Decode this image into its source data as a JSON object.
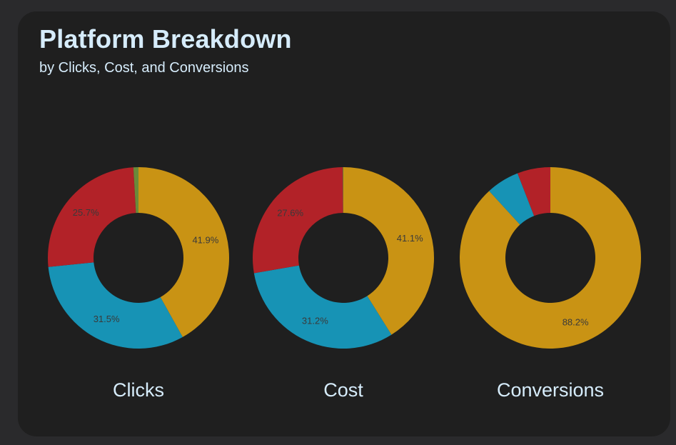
{
  "header": {
    "title": "Platform Breakdown",
    "subtitle": "by Clicks, Cost, and Conversions"
  },
  "chart_data": [
    {
      "type": "pie",
      "title": "Clicks",
      "donut": true,
      "slices": [
        {
          "value": 41.9,
          "label": "41.9%",
          "color": "#c99314"
        },
        {
          "value": 31.5,
          "label": "31.5%",
          "color": "#1793b5"
        },
        {
          "value": 25.7,
          "label": "25.7%",
          "color": "#b22228"
        },
        {
          "value": 0.9,
          "label": "",
          "color": "#6a8a3a"
        }
      ]
    },
    {
      "type": "pie",
      "title": "Cost",
      "donut": true,
      "slices": [
        {
          "value": 41.1,
          "label": "41.1%",
          "color": "#c99314"
        },
        {
          "value": 31.2,
          "label": "31.2%",
          "color": "#1793b5"
        },
        {
          "value": 27.6,
          "label": "27.6%",
          "color": "#b22228"
        },
        {
          "value": 0.1,
          "label": "",
          "color": "#6a8a3a"
        }
      ]
    },
    {
      "type": "pie",
      "title": "Conversions",
      "donut": true,
      "slices": [
        {
          "value": 88.2,
          "label": "88.2%",
          "color": "#c99314"
        },
        {
          "value": 5.9,
          "label": "",
          "color": "#1793b5"
        },
        {
          "value": 5.9,
          "label": "",
          "color": "#b22228"
        }
      ]
    }
  ]
}
